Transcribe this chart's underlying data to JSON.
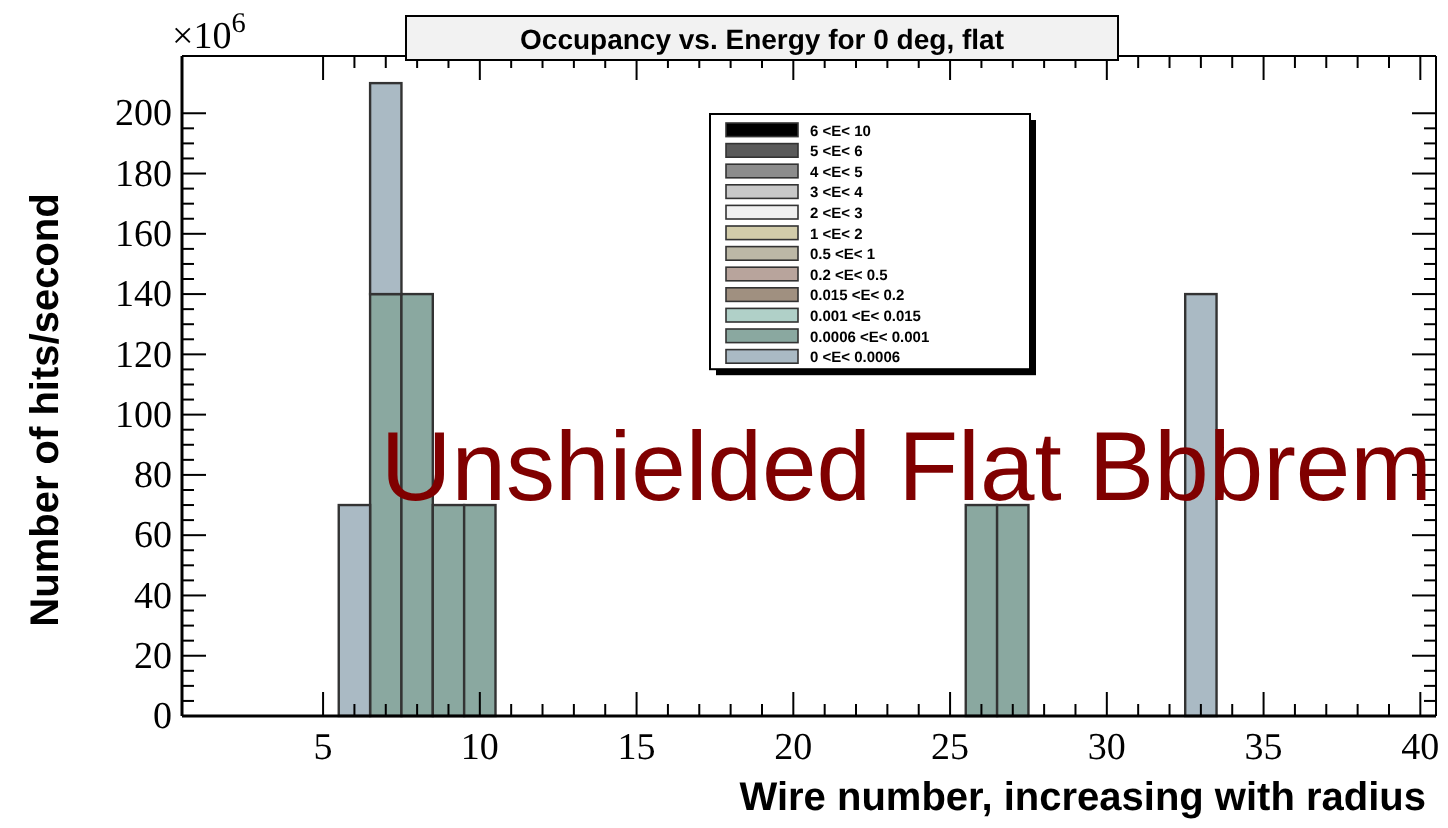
{
  "chart_data": {
    "type": "bar",
    "title": "Occupancy vs. Energy for 0 deg, flat",
    "xlabel": "Wire number, increasing with radius",
    "ylabel": "Number of hits/second",
    "annotations": [
      "×10$^{6}$",
      "Unshielded Flat Bbbrem"
    ],
    "x": [
      6,
      7,
      8,
      9,
      10,
      26,
      27,
      33
    ],
    "stacked": true,
    "series": [
      {
        "name": "6 <E< 10",
        "color": "#000000",
        "values": [
          0,
          0,
          0,
          0,
          0,
          0,
          0,
          0
        ]
      },
      {
        "name": "5 <E< 6",
        "color": "#5a5a5a",
        "values": [
          0,
          0,
          0,
          0,
          0,
          0,
          0,
          0
        ]
      },
      {
        "name": "4 <E< 5",
        "color": "#8c8c8c",
        "values": [
          0,
          0,
          0,
          0,
          0,
          0,
          0,
          0
        ]
      },
      {
        "name": "3 <E< 4",
        "color": "#c8c8c8",
        "values": [
          0,
          0,
          0,
          0,
          0,
          0,
          0,
          0
        ]
      },
      {
        "name": "2 <E< 3",
        "color": "#f0f0f0",
        "values": [
          0,
          0,
          0,
          0,
          0,
          0,
          0,
          0
        ]
      },
      {
        "name": "1 <E< 2",
        "color": "#d2ccaa",
        "values": [
          0,
          0,
          0,
          0,
          0,
          0,
          0,
          0
        ]
      },
      {
        "name": "0.5 <E< 1",
        "color": "#bcb8a6",
        "values": [
          0,
          0,
          0,
          0,
          0,
          0,
          0,
          0
        ]
      },
      {
        "name": "0.2 <E< 0.5",
        "color": "#b8a49c",
        "values": [
          0,
          0,
          0,
          0,
          0,
          0,
          0,
          0
        ]
      },
      {
        "name": "0.015 <E< 0.2",
        "color": "#a09080",
        "values": [
          0,
          0,
          0,
          0,
          0,
          0,
          0,
          0
        ]
      },
      {
        "name": "0.001 <E< 0.015",
        "color": "#b0d0c8",
        "values": [
          0,
          0,
          0,
          0,
          0,
          0,
          0,
          0
        ]
      },
      {
        "name": "0.0006 <E< 0.001",
        "color": "#8aa8a0",
        "values": [
          0,
          140,
          140,
          70,
          70,
          70,
          70,
          0
        ]
      },
      {
        "name": "0 <E< 0.0006",
        "color": "#aabac4",
        "values": [
          70,
          70,
          0,
          0,
          0,
          0,
          0,
          140
        ]
      }
    ],
    "xlim": [
      0.5,
      40.5
    ],
    "xticks": [
      5,
      10,
      15,
      20,
      25,
      30,
      35,
      40
    ],
    "ylim": [
      0,
      219
    ],
    "yticks": [
      0,
      20,
      40,
      60,
      80,
      100,
      120,
      140,
      160,
      180,
      200
    ],
    "legend": "top right"
  }
}
